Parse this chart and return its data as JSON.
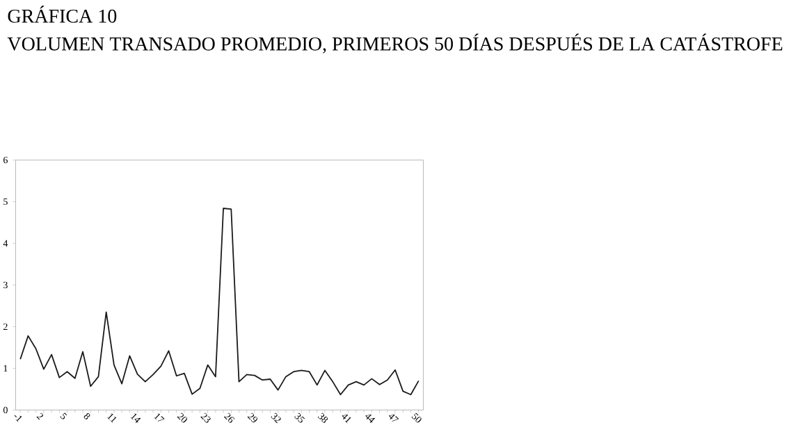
{
  "chart_data": {
    "type": "line",
    "title": "GRÁFICA 10",
    "subtitle": "VOLUMEN TRANSADO PROMEDIO, PRIMEROS 50 DÍAS DESPUÉS DE LA CATÁSTROFE",
    "categories": [
      "-1",
      null,
      null,
      "2",
      null,
      null,
      "5",
      null,
      null,
      "8",
      null,
      null,
      "11",
      null,
      null,
      "14",
      null,
      null,
      "17",
      null,
      null,
      "20",
      null,
      null,
      "23",
      null,
      null,
      "26",
      null,
      null,
      "29",
      null,
      null,
      "32",
      null,
      null,
      "35",
      null,
      null,
      "38",
      null,
      null,
      "41",
      null,
      null,
      "44",
      null,
      null,
      "47",
      null,
      null,
      "50"
    ],
    "values": [
      1.22,
      1.78,
      1.47,
      0.98,
      1.33,
      0.78,
      0.92,
      0.76,
      1.4,
      0.57,
      0.8,
      2.35,
      1.08,
      0.63,
      1.3,
      0.86,
      0.68,
      0.85,
      1.05,
      1.42,
      0.82,
      0.88,
      0.38,
      0.52,
      1.08,
      0.8,
      4.84,
      4.82,
      0.68,
      0.85,
      0.83,
      0.72,
      0.74,
      0.48,
      0.8,
      0.92,
      0.95,
      0.92,
      0.6,
      0.95,
      0.68,
      0.37,
      0.6,
      0.68,
      0.6,
      0.75,
      0.61,
      0.72,
      0.96,
      0.45,
      0.37,
      0.7
    ],
    "color": "#1a1a1a",
    "ylim": [
      0,
      6
    ],
    "yticks": [
      0,
      1,
      2,
      3,
      4,
      5,
      6
    ],
    "grid": false,
    "marker": "none",
    "line_style": "solid"
  }
}
